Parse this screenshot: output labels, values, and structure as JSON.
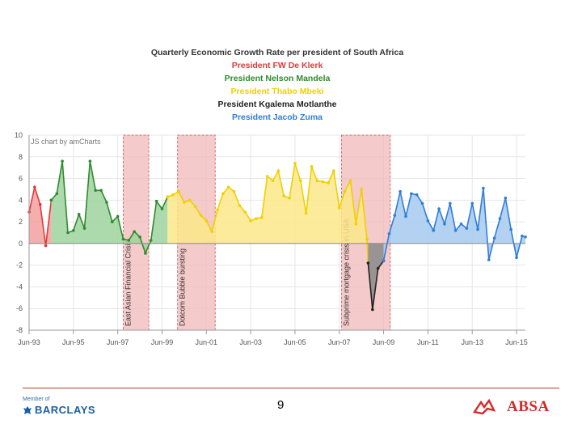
{
  "chart_data": {
    "type": "area",
    "title_lines": [
      {
        "text": "Quarterly Economic Growth Rate per president of South Africa",
        "color": "#333333"
      },
      {
        "text": "President FW De Klerk",
        "color": "#e03a3a"
      },
      {
        "text": "President Nelson Mandela",
        "color": "#2e8b2e"
      },
      {
        "text": "President Thabo Mbeki",
        "color": "#f0d000"
      },
      {
        "text": "President Kgalema Motlanthe",
        "color": "#222222"
      },
      {
        "text": "President Jacob Zuma",
        "color": "#2f7ed8"
      }
    ],
    "watermark": "JS chart by amCharts",
    "x_tick_labels": [
      "Jun-93",
      "Jun-95",
      "Jun-97",
      "Jun-99",
      "Jun-01",
      "Jun-03",
      "Jun-05",
      "Jun-07",
      "Jun-09",
      "Jun-11",
      "Jun-13",
      "Jun-15"
    ],
    "x_tick_years": [
      1993.5,
      1995.5,
      1997.5,
      1999.5,
      2001.5,
      2003.5,
      2005.5,
      2007.5,
      2009.5,
      2011.5,
      2013.5,
      2015.5
    ],
    "xlim": [
      1993.5,
      2015.9
    ],
    "ylim": [
      -8,
      10
    ],
    "y_ticks": [
      -8,
      -6,
      -4,
      -2,
      0,
      2,
      4,
      6,
      8,
      10
    ],
    "grid": true,
    "event_bands": [
      {
        "label": "East Asian Financial Crisis",
        "start": 1997.75,
        "end": 1998.9
      },
      {
        "label": "Dotcom Bubble bursting",
        "start": 2000.2,
        "end": 2001.9
      },
      {
        "label": "Subprime mortgage crisis in USA",
        "start": 2007.6,
        "end": 2009.8
      }
    ],
    "series": [
      {
        "color": "#e03a3a",
        "fill": "#f2a0a0",
        "points": [
          [
            1993.5,
            2.9
          ],
          [
            1993.75,
            5.2
          ],
          [
            1994.0,
            3.6
          ],
          [
            1994.25,
            -0.2
          ],
          [
            1994.5,
            4.0
          ]
        ]
      },
      {
        "color": "#2e8b2e",
        "fill": "#9fd49f",
        "points": [
          [
            1994.5,
            4.0
          ],
          [
            1994.75,
            4.6
          ],
          [
            1995.0,
            7.6
          ],
          [
            1995.25,
            1.0
          ],
          [
            1995.5,
            1.2
          ],
          [
            1995.75,
            2.7
          ],
          [
            1996.0,
            1.4
          ],
          [
            1996.25,
            7.6
          ],
          [
            1996.5,
            4.9
          ],
          [
            1996.75,
            4.9
          ],
          [
            1997.0,
            3.8
          ],
          [
            1997.25,
            2.0
          ],
          [
            1997.5,
            2.5
          ],
          [
            1997.75,
            0.4
          ],
          [
            1998.0,
            0.3
          ],
          [
            1998.25,
            1.1
          ],
          [
            1998.5,
            0.6
          ],
          [
            1998.75,
            -0.9
          ],
          [
            1999.0,
            0.3
          ],
          [
            1999.25,
            3.9
          ],
          [
            1999.5,
            3.2
          ],
          [
            1999.75,
            4.3
          ]
        ]
      },
      {
        "color": "#f0d000",
        "fill": "#fae88a",
        "points": [
          [
            1999.75,
            4.3
          ],
          [
            2000.0,
            4.5
          ],
          [
            2000.25,
            4.8
          ],
          [
            2000.5,
            3.8
          ],
          [
            2000.75,
            4.0
          ],
          [
            2001.0,
            3.4
          ],
          [
            2001.25,
            2.6
          ],
          [
            2001.5,
            2.1
          ],
          [
            2001.75,
            1.1
          ],
          [
            2002.0,
            3.1
          ],
          [
            2002.25,
            4.6
          ],
          [
            2002.5,
            5.2
          ],
          [
            2002.75,
            4.8
          ],
          [
            2003.0,
            3.5
          ],
          [
            2003.25,
            2.9
          ],
          [
            2003.5,
            2.1
          ],
          [
            2003.75,
            2.3
          ],
          [
            2004.0,
            2.4
          ],
          [
            2004.25,
            6.2
          ],
          [
            2004.5,
            5.8
          ],
          [
            2004.75,
            6.7
          ],
          [
            2005.0,
            4.4
          ],
          [
            2005.25,
            4.2
          ],
          [
            2005.5,
            7.4
          ],
          [
            2005.75,
            5.8
          ],
          [
            2006.0,
            2.8
          ],
          [
            2006.25,
            7.1
          ],
          [
            2006.5,
            5.8
          ],
          [
            2006.75,
            5.7
          ],
          [
            2007.0,
            5.6
          ],
          [
            2007.25,
            6.7
          ],
          [
            2007.5,
            3.3
          ],
          [
            2007.75,
            4.8
          ],
          [
            2008.0,
            5.8
          ],
          [
            2008.25,
            1.8
          ],
          [
            2008.5,
            5.0
          ],
          [
            2008.75,
            0.4
          ],
          [
            2008.8,
            -1.8
          ]
        ]
      },
      {
        "color": "#222222",
        "fill": "#8a8a8a",
        "points": [
          [
            2008.8,
            -1.8
          ],
          [
            2009.0,
            -6.1
          ],
          [
            2009.25,
            -2.3
          ],
          [
            2009.5,
            -1.6
          ]
        ]
      },
      {
        "color": "#2f7ed8",
        "fill": "#a6c9ef",
        "points": [
          [
            2009.5,
            -1.6
          ],
          [
            2009.75,
            0.9
          ],
          [
            2010.0,
            2.6
          ],
          [
            2010.25,
            4.8
          ],
          [
            2010.5,
            2.5
          ],
          [
            2010.75,
            4.6
          ],
          [
            2011.0,
            4.5
          ],
          [
            2011.25,
            3.7
          ],
          [
            2011.5,
            2.1
          ],
          [
            2011.75,
            1.2
          ],
          [
            2012.0,
            3.2
          ],
          [
            2012.25,
            1.8
          ],
          [
            2012.5,
            3.7
          ],
          [
            2012.75,
            1.2
          ],
          [
            2013.0,
            1.8
          ],
          [
            2013.25,
            1.4
          ],
          [
            2013.5,
            3.7
          ],
          [
            2013.75,
            1.3
          ],
          [
            2014.0,
            5.1
          ],
          [
            2014.25,
            -1.5
          ],
          [
            2014.5,
            0.5
          ],
          [
            2014.75,
            2.3
          ],
          [
            2015.0,
            4.2
          ],
          [
            2015.25,
            1.3
          ],
          [
            2015.5,
            -1.3
          ],
          [
            2015.75,
            0.7
          ],
          [
            2015.9,
            0.6
          ]
        ]
      }
    ]
  },
  "footer": {
    "page_number": "9",
    "barclays_member": "Member of",
    "barclays_brand": "BARCLAYS",
    "absa_brand": "ABSA"
  }
}
